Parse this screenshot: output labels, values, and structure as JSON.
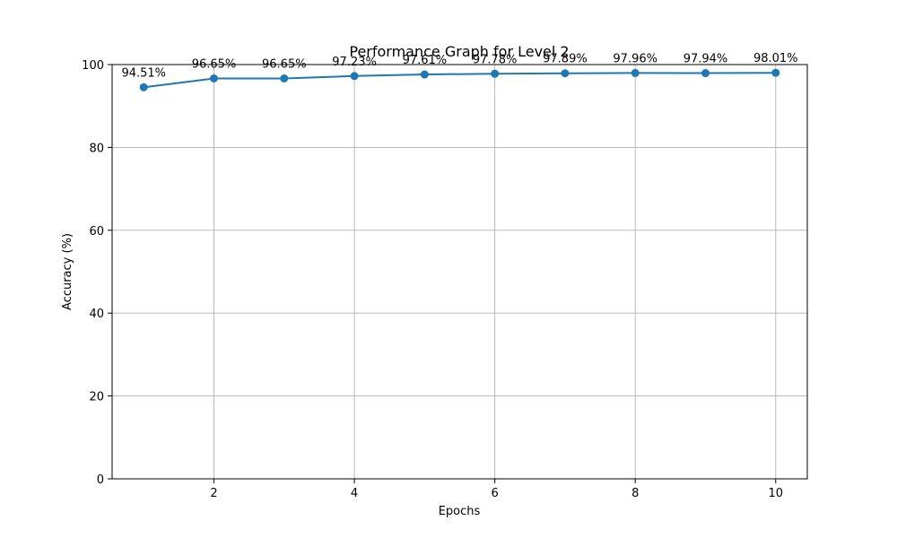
{
  "chart_data": {
    "type": "line",
    "title": "Performance Graph for Level 2",
    "xlabel": "Epochs",
    "ylabel": "Accuracy (%)",
    "x": [
      1,
      2,
      3,
      4,
      5,
      6,
      7,
      8,
      9,
      10
    ],
    "series": [
      {
        "values": [
          94.51,
          96.65,
          96.65,
          97.23,
          97.61,
          97.78,
          97.89,
          97.96,
          97.94,
          98.01
        ],
        "labels": [
          "94.51%",
          "96.65%",
          "96.65%",
          "97.23%",
          "97.61%",
          "97.78%",
          "97.89%",
          "97.96%",
          "97.94%",
          "98.01%"
        ],
        "color": "#1f77b4"
      }
    ],
    "xlim": [
      0.55,
      10.45
    ],
    "ylim": [
      0,
      100
    ],
    "xticks": [
      2,
      4,
      6,
      8,
      10
    ],
    "yticks": [
      0,
      20,
      40,
      60,
      80,
      100
    ],
    "grid": true,
    "marker": "circle"
  }
}
